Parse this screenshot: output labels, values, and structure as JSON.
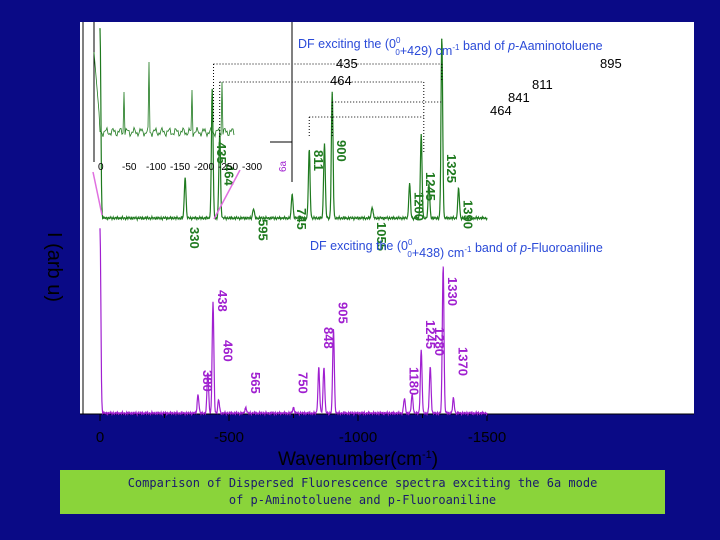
{
  "colors": {
    "background": "#0a0a86",
    "top_trace": "#1f7a1f",
    "bottom_trace": "#a020d0",
    "title": "#2a4ad8",
    "caption_bg": "#8ad43a"
  },
  "top_title": {
    "pre": "DF exciting the (0",
    "sup": "0",
    "sub": "0",
    "post": "+429) cm",
    "unit_sup": "-1",
    "post2": " band of ",
    "mol": "p",
    "mol2": "-Aaminotoluene"
  },
  "bottom_title": {
    "pre": "DF exciting the (0",
    "sup": "0",
    "sub": "0",
    "post": "+438) cm",
    "unit_sup": "-1",
    "post2": " band of ",
    "mol": "p",
    "mol2": "-Fluoroaniline"
  },
  "inset_ticks": [
    "0",
    "-50",
    "-100",
    "-150",
    "-200",
    "-250",
    "-300"
  ],
  "inset_arrow_label": "6a",
  "ylabel": "I  (arb u)",
  "chart_data": {
    "type": "line",
    "xlabel": "Wavenumber(cm",
    "xlabel_sup": "-1",
    "xlabel_end": ")",
    "xlim": [
      0,
      -1500
    ],
    "xticks": [
      0,
      -500,
      -1000,
      -1500
    ],
    "xtick_labels": [
      "0",
      "-500",
      "-1000",
      "-1500"
    ],
    "series": [
      {
        "peaks": [
          {
            "x": 0,
            "h": 1.0
          },
          {
            "x": -330,
            "h": 0.22
          },
          {
            "x": -435,
            "h": 0.68
          },
          {
            "x": -464,
            "h": 0.45
          },
          {
            "x": -595,
            "h": 0.05
          },
          {
            "x": -745,
            "h": 0.13
          },
          {
            "x": -811,
            "h": 0.36
          },
          {
            "x": -870,
            "h": 0.4
          },
          {
            "x": -900,
            "h": 0.66
          },
          {
            "x": -1055,
            "h": 0.06
          },
          {
            "x": -1200,
            "h": 0.18
          },
          {
            "x": -1245,
            "h": 0.44
          },
          {
            "x": -1275,
            "h": 0.18
          },
          {
            "x": -1325,
            "h": 0.95
          },
          {
            "x": -1390,
            "h": 0.16
          }
        ],
        "labels": [
          {
            "x": -330,
            "text": "330"
          },
          {
            "x": -435,
            "text": "435"
          },
          {
            "x": -464,
            "text": "464"
          },
          {
            "x": -595,
            "text": "595"
          },
          {
            "x": -745,
            "text": "745"
          },
          {
            "x": -811,
            "text": "811"
          },
          {
            "x": -900,
            "text": "900"
          },
          {
            "x": -1055,
            "text": "1055"
          },
          {
            "x": -1200,
            "text": "1200"
          },
          {
            "x": -1245,
            "text": "1245"
          },
          {
            "x": -1325,
            "text": "1325"
          },
          {
            "x": -1390,
            "text": "1390"
          }
        ]
      },
      {
        "peaks": [
          {
            "x": 0,
            "h": 1.0
          },
          {
            "x": -380,
            "h": 0.1
          },
          {
            "x": -418,
            "h": 0.22
          },
          {
            "x": -438,
            "h": 0.6
          },
          {
            "x": -460,
            "h": 0.07
          },
          {
            "x": -565,
            "h": 0.03
          },
          {
            "x": -750,
            "h": 0.03
          },
          {
            "x": -848,
            "h": 0.25
          },
          {
            "x": -868,
            "h": 0.25
          },
          {
            "x": -905,
            "h": 0.46
          },
          {
            "x": -1180,
            "h": 0.08
          },
          {
            "x": -1210,
            "h": 0.1
          },
          {
            "x": -1245,
            "h": 0.34
          },
          {
            "x": -1280,
            "h": 0.25
          },
          {
            "x": -1330,
            "h": 0.8
          },
          {
            "x": -1370,
            "h": 0.08
          }
        ],
        "labels": [
          {
            "x": -380,
            "text": "380"
          },
          {
            "x": -438,
            "text": "438"
          },
          {
            "x": -460,
            "text": "460"
          },
          {
            "x": -565,
            "text": "565"
          },
          {
            "x": -750,
            "text": "750"
          },
          {
            "x": -848,
            "text": "848"
          },
          {
            "x": -905,
            "text": "905"
          },
          {
            "x": -1180,
            "text": "1180"
          },
          {
            "x": -1245,
            "text": "1245"
          },
          {
            "x": -1280,
            "text": "1280"
          },
          {
            "x": -1330,
            "text": "1330"
          },
          {
            "x": -1370,
            "text": "1370"
          }
        ]
      }
    ],
    "annotations": [
      "435",
      "464",
      "895",
      "811",
      "841",
      "464"
    ]
  },
  "caption_line1": "Comparison of Dispersed Fluorescence spectra exciting the 6a mode",
  "caption_line2": "of p-Aminotoluene and  p-Fluoroaniline"
}
